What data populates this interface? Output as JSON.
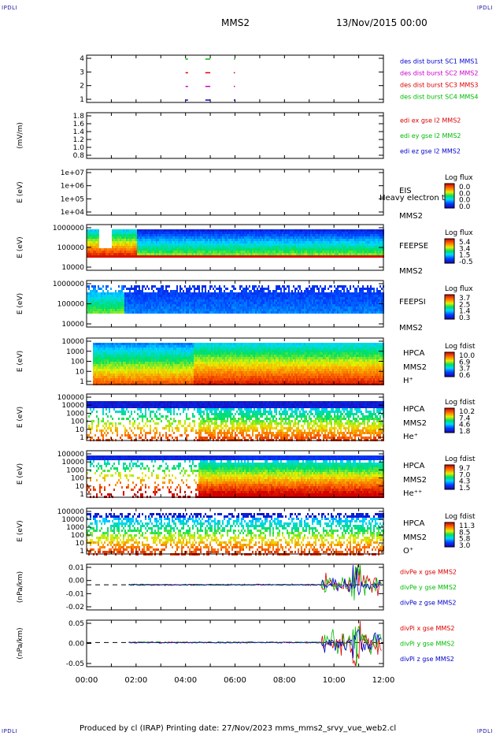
{
  "corners": {
    "tl": "IPDLI",
    "tr": "IPDLI",
    "bl": "IPDLI",
    "br": "IPDLI"
  },
  "header": {
    "mission": "MMS2",
    "datetime": "13/Nov/2015 00:00"
  },
  "footer": {
    "text": "Produced by cl (IRAP)   Printing date: 27/Nov/2023   mms_mms2_srvy_vue_web2.cl"
  },
  "colors": {
    "blue": "#0000cc",
    "magenta": "#cc00cc",
    "red": "#dd0000",
    "green": "#00bb00"
  },
  "chart_data": {
    "type": "heatmap",
    "x_axis": {
      "range": [
        "00:00",
        "12:00"
      ],
      "ticks": [
        "00:00",
        "02:00",
        "04:00",
        "06:00",
        "08:00",
        "10:00",
        "12:00"
      ]
    },
    "panels": [
      {
        "id": "des-dist-burst",
        "type": "scatter",
        "ylabel": "",
        "yticks": [
          "4",
          "3",
          "2",
          "1"
        ],
        "legend": [
          {
            "text": "des dist burst SC1 MMS1",
            "color": "#0000cc"
          },
          {
            "text": "des dist burst SC2 MMS2",
            "color": "#cc00cc"
          },
          {
            "text": "des dist burst SC3 MMS3",
            "color": "#dd0000"
          },
          {
            "text": "des dist burst SC4 MMS4",
            "color": "#00bb00"
          }
        ]
      },
      {
        "id": "edi-e",
        "type": "line",
        "ylabel": "(mV/m)",
        "yticks": [
          "1.8",
          "1.6",
          "1.4",
          "1.2",
          "1.0",
          "0.8"
        ],
        "legend": [
          {
            "text": "edi ex gse l2 MMS2",
            "color": "#dd0000"
          },
          {
            "text": "edi ey gse l2 MMS2",
            "color": "#00bb00"
          },
          {
            "text": "edi ez gse l2 MMS2",
            "color": "#0000cc"
          }
        ]
      },
      {
        "id": "eis",
        "type": "heatmap",
        "ylabel": "E (eV)",
        "yticks": [
          "1e+07",
          "1e+06",
          "1e+05",
          "1e+04"
        ],
        "labels": [
          "EIS",
          "MMS2"
        ],
        "overlay": "Heavy electron to",
        "cbar_title": "Log flux",
        "cbar_ticks": [
          "0.0",
          "0.0",
          "0.0",
          "0.0"
        ]
      },
      {
        "id": "feeps-e",
        "type": "heatmap",
        "ylabel": "E (eV)",
        "yticks": [
          "1000000",
          "100000",
          "10000"
        ],
        "labels": [
          "FEEPSE",
          "MMS2"
        ],
        "cbar_title": "Log flux",
        "cbar_ticks": [
          "5.4",
          "3.4",
          "1.5",
          "-0.5"
        ]
      },
      {
        "id": "feeps-i",
        "type": "heatmap",
        "ylabel": "E (eV)",
        "yticks": [
          "1000000",
          "100000",
          "10000"
        ],
        "labels": [
          "FEEPSI",
          "MMS2"
        ],
        "cbar_title": "Log flux",
        "cbar_ticks": [
          "3.7",
          "2.5",
          "1.4",
          "0.3"
        ]
      },
      {
        "id": "hpca-h",
        "type": "heatmap",
        "ylabel": "E (eV)",
        "yticks": [
          "10000",
          "1000",
          "100",
          "10",
          "1"
        ],
        "labels": [
          "HPCA",
          "MMS2",
          "H⁺"
        ],
        "cbar_title": "Log fdist",
        "cbar_ticks": [
          "10.0",
          "6.9",
          "3.7",
          "0.6"
        ]
      },
      {
        "id": "hpca-he",
        "type": "heatmap",
        "ylabel": "E (eV)",
        "yticks": [
          "100000",
          "10000",
          "1000",
          "100",
          "10",
          "1"
        ],
        "labels": [
          "HPCA",
          "MMS2",
          "He⁺"
        ],
        "cbar_title": "Log fdist",
        "cbar_ticks": [
          "10.2",
          "7.4",
          "4.6",
          "1.8"
        ]
      },
      {
        "id": "hpca-hepp",
        "type": "heatmap",
        "ylabel": "E (eV)",
        "yticks": [
          "100000",
          "10000",
          "1000",
          "100",
          "10",
          "1"
        ],
        "labels": [
          "HPCA",
          "MMS2",
          "He⁺⁺"
        ],
        "cbar_title": "Log fdist",
        "cbar_ticks": [
          "9.7",
          "7.0",
          "4.3",
          "1.5"
        ]
      },
      {
        "id": "hpca-o",
        "type": "heatmap",
        "ylabel": "E (eV)",
        "yticks": [
          "100000",
          "10000",
          "1000",
          "100",
          "10",
          "1"
        ],
        "labels": [
          "HPCA",
          "MMS2",
          "O⁺"
        ],
        "cbar_title": "Log fdist",
        "cbar_ticks": [
          "11.3",
          "8.5",
          "5.8",
          "3.0"
        ]
      },
      {
        "id": "divpe",
        "type": "line",
        "ylabel": "(nPa/km)",
        "yticks": [
          "0.01",
          "0.00",
          "-0.01",
          "-0.02"
        ],
        "legend": [
          {
            "text": "divPe x gse MMS2",
            "color": "#dd0000"
          },
          {
            "text": "divPe y gse MMS2",
            "color": "#00bb00"
          },
          {
            "text": "divPe z gse MMS2",
            "color": "#0000cc"
          }
        ]
      },
      {
        "id": "divpi",
        "type": "line",
        "ylabel": "(nPa/km)",
        "yticks": [
          "0.05",
          "0.00",
          "-0.05"
        ],
        "legend": [
          {
            "text": "divPi x gse MMS2",
            "color": "#dd0000"
          },
          {
            "text": "divPi y gse MMS2",
            "color": "#00bb00"
          },
          {
            "text": "divPi z gse MMS2",
            "color": "#0000cc"
          }
        ]
      }
    ]
  }
}
